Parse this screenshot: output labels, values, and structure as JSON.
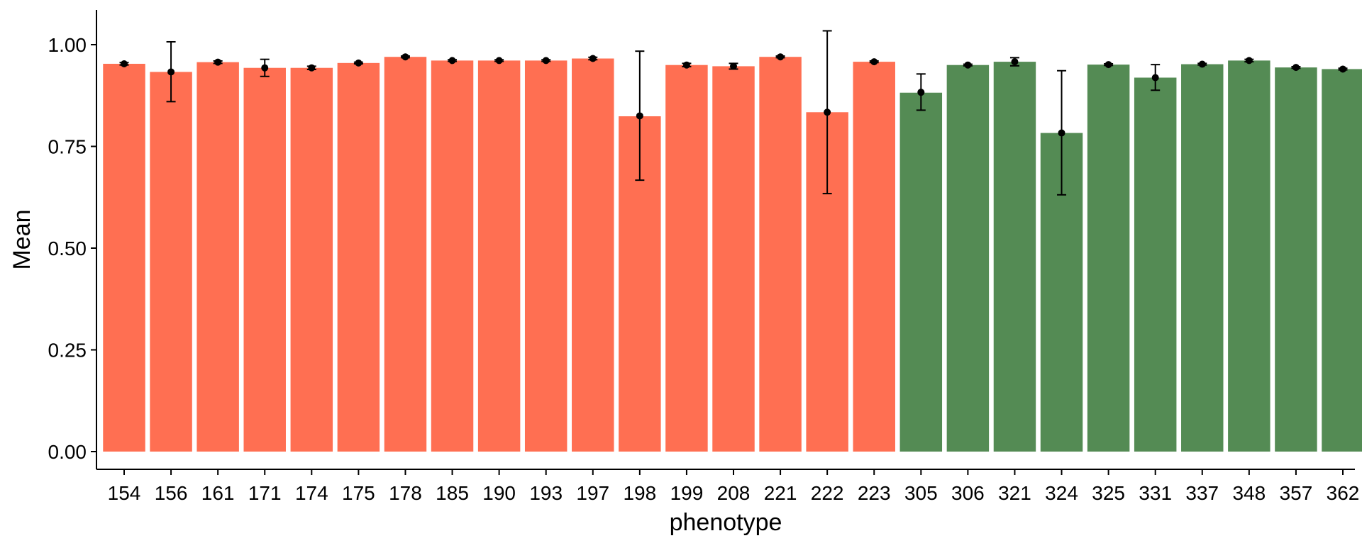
{
  "chart_data": {
    "type": "bar",
    "title": "",
    "xlabel": "phenotype",
    "ylabel": "Mean",
    "ylim": [
      0,
      1.05
    ],
    "y_ticks": [
      0.0,
      0.25,
      0.5,
      0.75,
      1.0
    ],
    "y_tick_labels": [
      "0.00",
      "0.25",
      "0.50",
      "0.75",
      "1.00"
    ],
    "grid": false,
    "legend": "none",
    "colors": {
      "group1": "#FF6F52",
      "group2": "#548B54",
      "errorbar": "#000000"
    },
    "categories": [
      "154",
      "156",
      "161",
      "171",
      "174",
      "175",
      "178",
      "185",
      "190",
      "193",
      "197",
      "198",
      "199",
      "208",
      "221",
      "222",
      "223",
      "305",
      "306",
      "321",
      "324",
      "325",
      "331",
      "337",
      "348",
      "357",
      "362"
    ],
    "values": [
      0.953,
      0.933,
      0.957,
      0.943,
      0.943,
      0.955,
      0.97,
      0.961,
      0.961,
      0.961,
      0.966,
      0.824,
      0.95,
      0.947,
      0.97,
      0.834,
      0.958,
      0.882,
      0.95,
      0.958,
      0.783,
      0.951,
      0.919,
      0.952,
      0.961,
      0.944,
      0.94
    ],
    "means": [
      0.953,
      0.933,
      0.957,
      0.943,
      0.943,
      0.955,
      0.97,
      0.961,
      0.961,
      0.961,
      0.966,
      0.825,
      0.95,
      0.947,
      0.97,
      0.834,
      0.958,
      0.883,
      0.95,
      0.958,
      0.783,
      0.951,
      0.919,
      0.952,
      0.961,
      0.944,
      0.94
    ],
    "err_low": [
      0.95,
      0.86,
      0.954,
      0.922,
      0.939,
      0.953,
      0.968,
      0.959,
      0.959,
      0.959,
      0.963,
      0.667,
      0.946,
      0.94,
      0.968,
      0.634,
      0.956,
      0.839,
      0.948,
      0.948,
      0.631,
      0.949,
      0.888,
      0.95,
      0.958,
      0.942,
      0.938
    ],
    "err_high": [
      0.956,
      1.007,
      0.96,
      0.964,
      0.947,
      0.957,
      0.972,
      0.963,
      0.963,
      0.963,
      0.969,
      0.984,
      0.954,
      0.954,
      0.972,
      1.034,
      0.96,
      0.928,
      0.952,
      0.968,
      0.936,
      0.953,
      0.951,
      0.954,
      0.964,
      0.946,
      0.942
    ],
    "group": [
      1,
      1,
      1,
      1,
      1,
      1,
      1,
      1,
      1,
      1,
      1,
      1,
      1,
      1,
      1,
      1,
      1,
      2,
      2,
      2,
      2,
      2,
      2,
      2,
      2,
      2,
      2
    ]
  }
}
